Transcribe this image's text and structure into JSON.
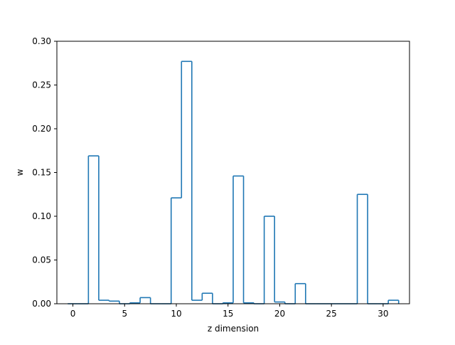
{
  "chart_data": {
    "type": "bar",
    "style": "step-histogram",
    "title": "",
    "xlabel": "z dimension",
    "ylabel": "w",
    "x": [
      0,
      1,
      2,
      3,
      4,
      5,
      6,
      7,
      8,
      9,
      10,
      11,
      12,
      13,
      14,
      15,
      16,
      17,
      18,
      19,
      20,
      21,
      22,
      23,
      24,
      25,
      26,
      27,
      28,
      29,
      30,
      31
    ],
    "values": [
      0.0,
      0.0,
      0.169,
      0.004,
      0.003,
      0.0,
      0.001,
      0.007,
      0.0,
      0.0,
      0.121,
      0.277,
      0.004,
      0.012,
      0.0,
      0.001,
      0.146,
      0.001,
      0.0,
      0.1,
      0.002,
      0.0,
      0.023,
      0.0,
      0.0,
      0.0,
      0.0,
      0.0,
      0.125,
      0.0,
      0.0,
      0.004
    ],
    "xlim": [
      -1.55,
      32.55
    ],
    "ylim": [
      0.0,
      0.3
    ],
    "xticks": [
      0,
      5,
      10,
      15,
      20,
      25,
      30
    ],
    "xtick_labels": [
      "0",
      "5",
      "10",
      "15",
      "20",
      "25",
      "30"
    ],
    "yticks": [
      0.0,
      0.05,
      0.1,
      0.15,
      0.2,
      0.25,
      0.3
    ],
    "ytick_labels": [
      "0.00",
      "0.05",
      "0.10",
      "0.15",
      "0.20",
      "0.25",
      "0.30"
    ],
    "grid": false,
    "legend": "none",
    "line_color": "#1f77b4"
  }
}
